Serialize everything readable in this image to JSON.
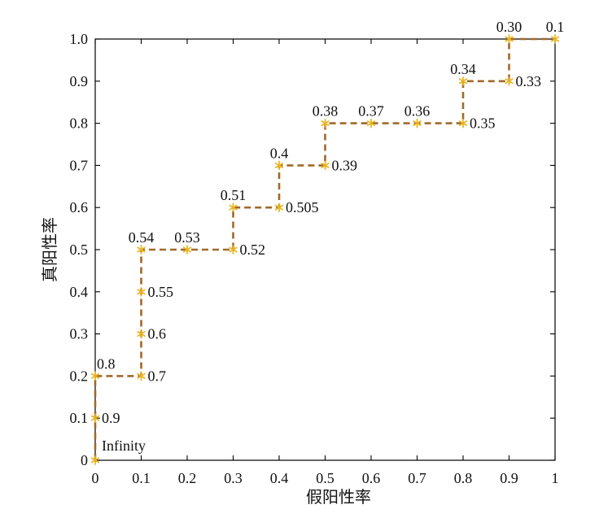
{
  "chart_data": {
    "type": "line",
    "xlabel": "假阳性率",
    "ylabel": "真阳性率",
    "xlim": [
      0,
      1
    ],
    "ylim": [
      0,
      1.0
    ],
    "xticks": [
      0,
      0.1,
      0.2,
      0.3,
      0.4,
      0.5,
      0.6,
      0.7,
      0.8,
      0.9,
      1
    ],
    "xtick_labels": [
      "0",
      "0.1",
      "0.2",
      "0.3",
      "0.4",
      "0.5",
      "0.6",
      "0.7",
      "0.8",
      "0.9",
      "1"
    ],
    "yticks": [
      0,
      0.1,
      0.2,
      0.3,
      0.4,
      0.5,
      0.6,
      0.7,
      0.8,
      0.9,
      1.0
    ],
    "ytick_labels": [
      "0",
      "0.1",
      "0.2",
      "0.3",
      "0.4",
      "0.5",
      "0.6",
      "0.7",
      "0.8",
      "0.9",
      "1.0"
    ],
    "grid": false,
    "legend": false,
    "series": [
      {
        "line_style": "dashed",
        "marker": "asterisk",
        "line_color": "#a0692a",
        "marker_color": "#e8b41e",
        "x": [
          0,
          0,
          0,
          0.1,
          0.1,
          0.1,
          0.1,
          0.2,
          0.3,
          0.3,
          0.4,
          0.4,
          0.5,
          0.5,
          0.6,
          0.7,
          0.8,
          0.8,
          0.9,
          0.9,
          1.0
        ],
        "y": [
          0,
          0.1,
          0.2,
          0.2,
          0.3,
          0.4,
          0.5,
          0.5,
          0.5,
          0.6,
          0.6,
          0.7,
          0.7,
          0.8,
          0.8,
          0.8,
          0.8,
          0.9,
          0.9,
          1.0,
          1.0
        ],
        "point_labels": [
          "Infinity",
          "0.9",
          "0.8",
          "0.7",
          "0.6",
          "0.55",
          "0.54",
          "0.53",
          "0.52",
          "0.51",
          "0.505",
          "0.4",
          "0.39",
          "0.38",
          "0.37",
          "0.36",
          "0.35",
          "0.34",
          "0.33",
          "0.30",
          "0.1"
        ]
      }
    ]
  }
}
